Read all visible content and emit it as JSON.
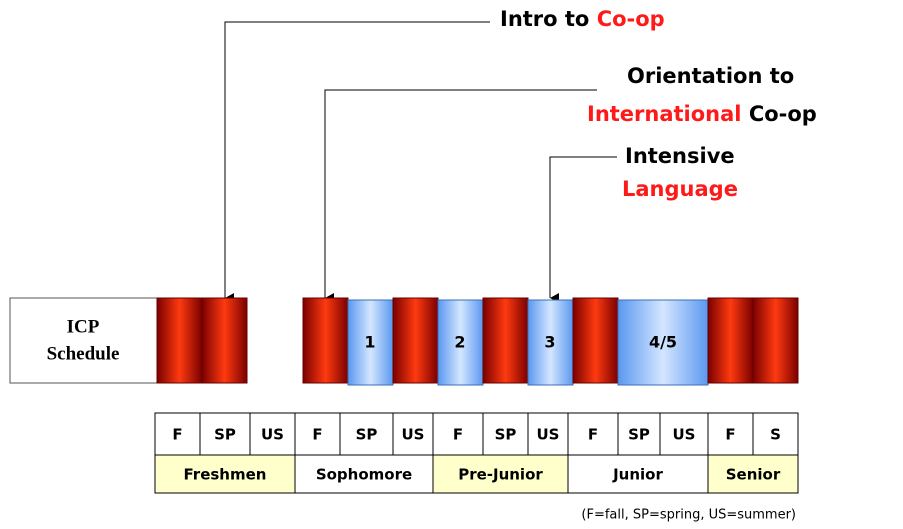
{
  "schedule_label": {
    "line1": "ICP",
    "line2": "Schedule"
  },
  "callouts": {
    "intro": [
      "Intro to",
      "Co-op"
    ],
    "orientation": [
      "Orientation to",
      "International",
      "Co-op"
    ],
    "intensive": [
      "Intensive",
      "Language"
    ]
  },
  "blocks": [
    "1",
    "2",
    "3",
    "4/5"
  ],
  "terms": [
    "F",
    "SP",
    "US",
    "F",
    "SP",
    "US",
    "F",
    "SP",
    "US",
    "F",
    "SP",
    "US",
    "F",
    "S"
  ],
  "years": [
    "Freshmen",
    "Sophomore",
    "Pre-Junior",
    "Junior",
    "Senior"
  ],
  "footnote": "(F=fall, SP=spring, US=summer)"
}
